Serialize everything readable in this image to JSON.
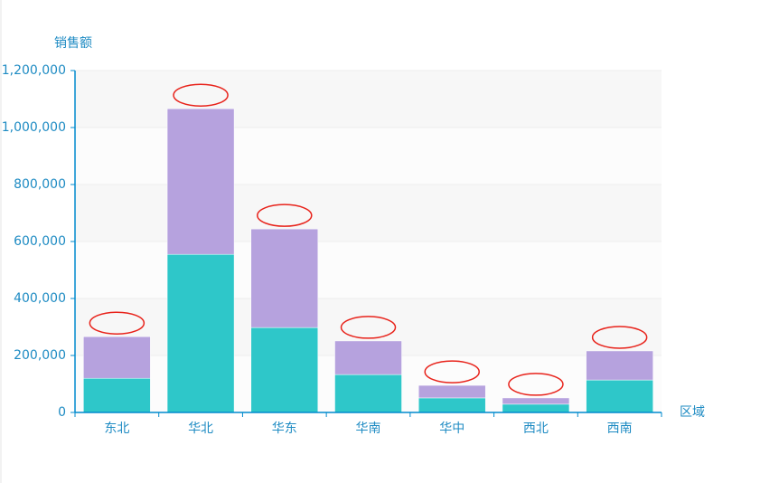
{
  "chart_data": {
    "type": "stacked-bar",
    "y_label": "销售额",
    "x_label": "区域",
    "categories": [
      "东北",
      "华北",
      "华东",
      "华南",
      "华中",
      "西北",
      "西南"
    ],
    "series": [
      {
        "color": "#2ec7c9",
        "values": [
          120000,
          555000,
          298000,
          133000,
          51000,
          29000,
          114000
        ]
      },
      {
        "color": "#b6a2de",
        "values": [
          146000,
          511000,
          346000,
          118000,
          44000,
          22000,
          102000
        ]
      }
    ],
    "ylim": [
      0,
      1200000
    ],
    "yticks": [
      0,
      {
        "value": 200000,
        "label": "200,000"
      },
      {
        "value": 400000,
        "label": "400,000"
      },
      {
        "value": 600000,
        "label": "600,000"
      },
      {
        "value": 800000,
        "label": "800,000"
      },
      {
        "value": 1000000,
        "label": "1,000,000"
      },
      {
        "value": 1200000,
        "label": "1,200,000"
      }
    ],
    "grid": true
  }
}
